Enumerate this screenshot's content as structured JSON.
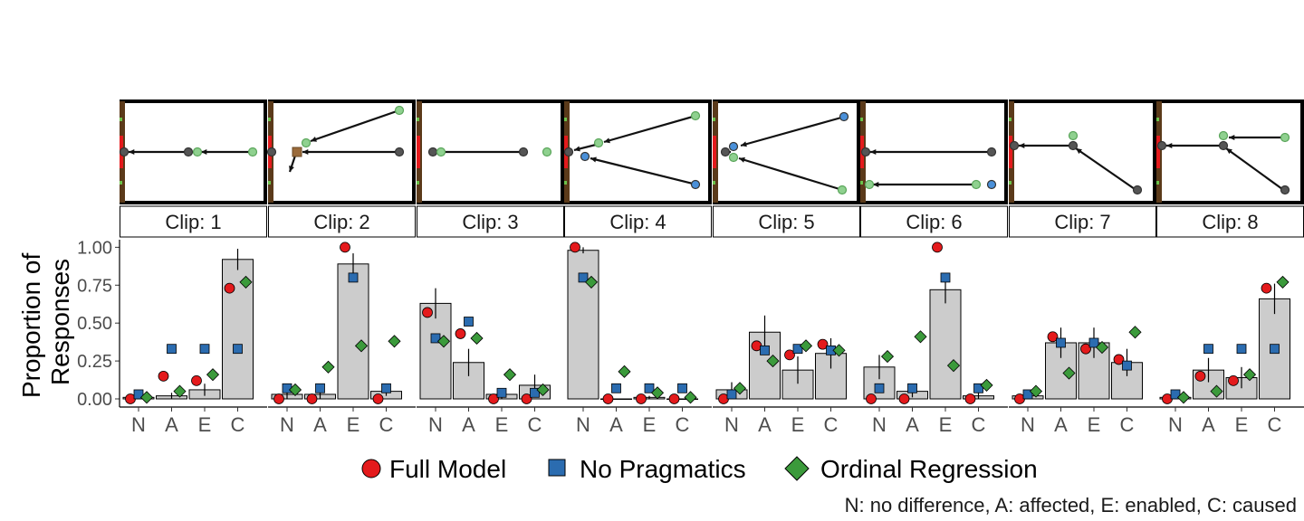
{
  "chart_data": {
    "type": "bar",
    "ylabel": [
      "Proportion of",
      "Responses"
    ],
    "ylim": [
      0,
      1.05
    ],
    "yticks": [
      0,
      0.25,
      0.5,
      0.75,
      1.0
    ],
    "ytick_labels": [
      "0.00",
      "0.25",
      "0.50",
      "0.75",
      "1.00"
    ],
    "categories": [
      "N",
      "A",
      "E",
      "C"
    ],
    "category_meanings": "N: no difference, A: affected, E: enabled, C: caused",
    "legend": [
      "Full Model",
      "No Pragmatics",
      "Ordinal Regression"
    ],
    "legend_position": "bottom",
    "colors": {
      "full_model": "#e41a1c",
      "no_pragmatics": "#2b6cb0",
      "ordinal_regression": "#3b9a3b",
      "bar_fill": "#cccccc"
    },
    "panels": [
      {
        "strip": "Clip: 1",
        "bars": [
          0.01,
          0.02,
          0.06,
          0.92
        ],
        "errors": [
          0.01,
          0.02,
          0.04,
          0.07
        ],
        "full_model": [
          0.0,
          0.15,
          0.12,
          0.73
        ],
        "no_pragmatics": [
          0.03,
          0.33,
          0.33,
          0.33
        ],
        "ordinal_regression": [
          0.01,
          0.05,
          0.16,
          0.77
        ]
      },
      {
        "strip": "Clip: 2",
        "bars": [
          0.03,
          0.03,
          0.89,
          0.05
        ],
        "errors": [
          0.03,
          0.03,
          0.07,
          0.03
        ],
        "full_model": [
          0.0,
          0.0,
          1.0,
          0.0
        ],
        "no_pragmatics": [
          0.07,
          0.07,
          0.8,
          0.07
        ],
        "ordinal_regression": [
          0.06,
          0.21,
          0.35,
          0.38
        ]
      },
      {
        "strip": "Clip: 3",
        "bars": [
          0.63,
          0.24,
          0.03,
          0.09
        ],
        "errors": [
          0.1,
          0.09,
          0.03,
          0.07
        ],
        "full_model": [
          0.57,
          0.43,
          0.0,
          0.0
        ],
        "no_pragmatics": [
          0.4,
          0.51,
          0.04,
          0.04
        ],
        "ordinal_regression": [
          0.38,
          0.4,
          0.16,
          0.06
        ]
      },
      {
        "strip": "Clip: 4",
        "bars": [
          0.98,
          0.0,
          0.01,
          0.0
        ],
        "errors": [
          0.02,
          0.0,
          0.01,
          0.0
        ],
        "full_model": [
          1.0,
          0.0,
          0.0,
          0.0
        ],
        "no_pragmatics": [
          0.8,
          0.07,
          0.07,
          0.07
        ],
        "ordinal_regression": [
          0.77,
          0.18,
          0.04,
          0.01
        ]
      },
      {
        "strip": "Clip: 5",
        "bars": [
          0.06,
          0.44,
          0.19,
          0.3
        ],
        "errors": [
          0.05,
          0.11,
          0.09,
          0.1
        ],
        "full_model": [
          0.0,
          0.35,
          0.29,
          0.36
        ],
        "no_pragmatics": [
          0.03,
          0.32,
          0.33,
          0.32
        ],
        "ordinal_regression": [
          0.07,
          0.25,
          0.35,
          0.32
        ]
      },
      {
        "strip": "Clip: 6",
        "bars": [
          0.21,
          0.05,
          0.72,
          0.02
        ],
        "errors": [
          0.08,
          0.04,
          0.09,
          0.02
        ],
        "full_model": [
          0.0,
          0.0,
          1.0,
          0.0
        ],
        "no_pragmatics": [
          0.07,
          0.07,
          0.8,
          0.07
        ],
        "ordinal_regression": [
          0.28,
          0.41,
          0.22,
          0.09
        ]
      },
      {
        "strip": "Clip: 7",
        "bars": [
          0.02,
          0.37,
          0.37,
          0.24
        ],
        "errors": [
          0.02,
          0.1,
          0.1,
          0.09
        ],
        "full_model": [
          0.0,
          0.41,
          0.33,
          0.26
        ],
        "no_pragmatics": [
          0.03,
          0.37,
          0.37,
          0.22
        ],
        "ordinal_regression": [
          0.05,
          0.17,
          0.34,
          0.44
        ]
      },
      {
        "strip": "Clip: 8",
        "bars": [
          0.01,
          0.19,
          0.14,
          0.66
        ],
        "errors": [
          0.01,
          0.08,
          0.07,
          0.1
        ],
        "full_model": [
          0.0,
          0.15,
          0.12,
          0.73
        ],
        "no_pragmatics": [
          0.03,
          0.33,
          0.33,
          0.33
        ],
        "ordinal_regression": [
          0.01,
          0.05,
          0.16,
          0.77
        ]
      }
    ]
  }
}
